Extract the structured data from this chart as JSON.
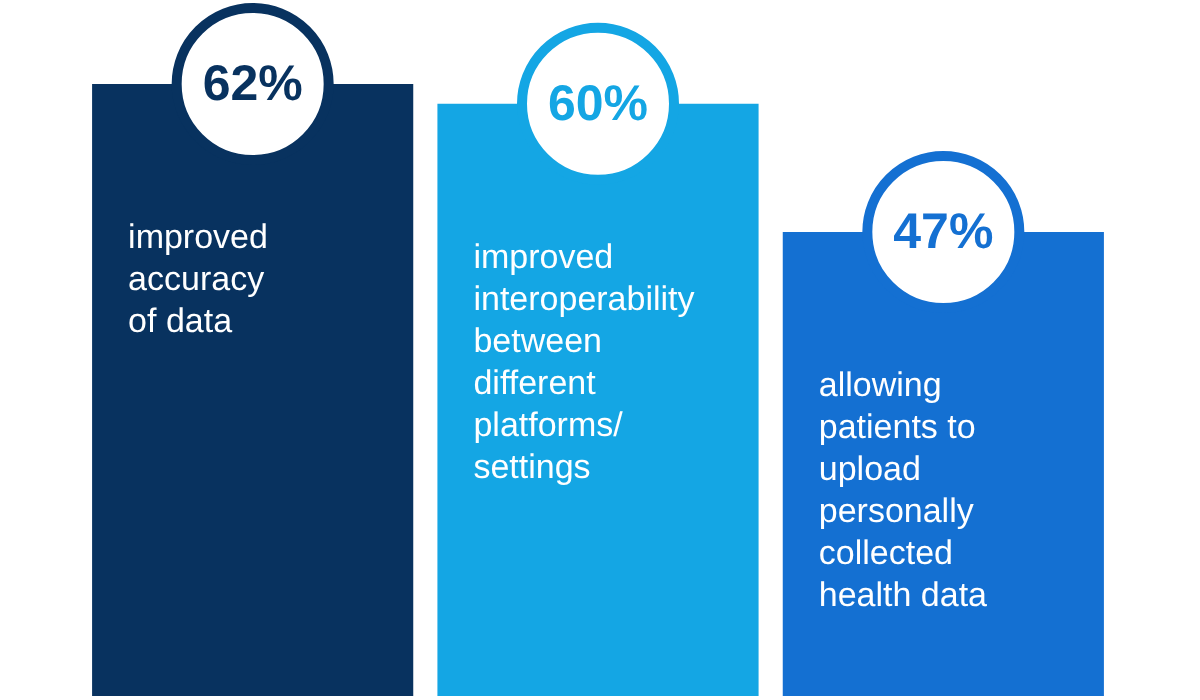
{
  "chart_data": {
    "type": "bar",
    "categories": [
      "improved accuracy of data",
      "improved interoperability between different platforms/ settings",
      "allowing patients to upload personally collected health data"
    ],
    "values": [
      62,
      60,
      47
    ],
    "colors": [
      "#08325f",
      "#14a6e4",
      "#1470d2"
    ],
    "value_labels": [
      "62%",
      "60%",
      "47%"
    ],
    "legend": false
  }
}
